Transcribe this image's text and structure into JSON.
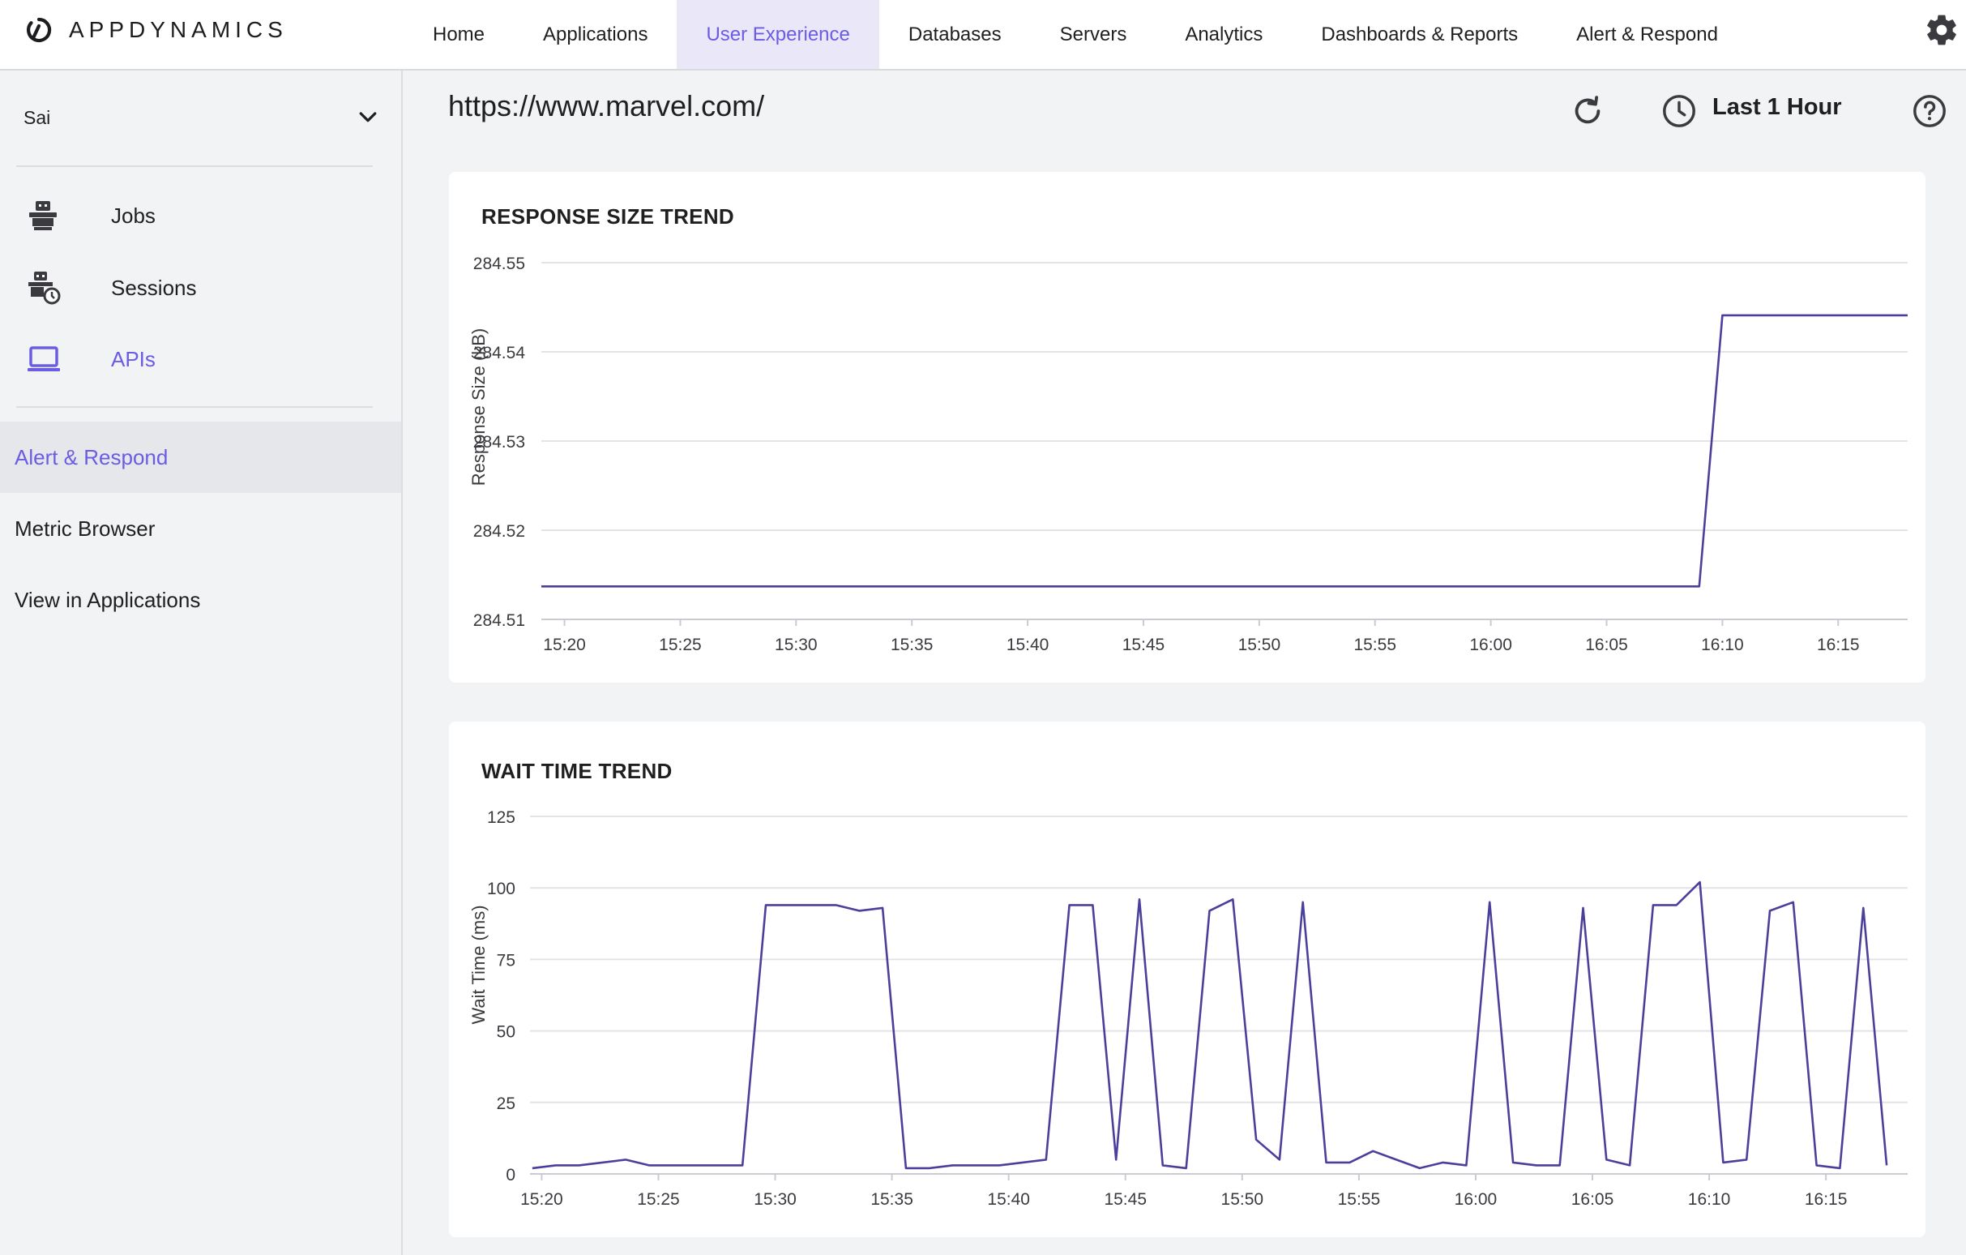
{
  "app": {
    "brand": "APPDYNAMICS"
  },
  "nav": {
    "items": [
      {
        "label": "Home",
        "name": "nav-home",
        "active": false
      },
      {
        "label": "Applications",
        "name": "nav-applications",
        "active": false
      },
      {
        "label": "User Experience",
        "name": "nav-user-experience",
        "active": true
      },
      {
        "label": "Databases",
        "name": "nav-databases",
        "active": false
      },
      {
        "label": "Servers",
        "name": "nav-servers",
        "active": false
      },
      {
        "label": "Analytics",
        "name": "nav-analytics",
        "active": false
      },
      {
        "label": "Dashboards & Reports",
        "name": "nav-dashboards-reports",
        "active": false
      },
      {
        "label": "Alert & Respond",
        "name": "nav-alert-respond",
        "active": false
      }
    ],
    "settings_icon": "gear-icon"
  },
  "sidebar": {
    "account": "Sai",
    "items": [
      {
        "label": "Jobs",
        "icon": "robot-icon",
        "active": false
      },
      {
        "label": "Sessions",
        "icon": "robot-clock-icon",
        "active": false
      },
      {
        "label": "APIs",
        "icon": "laptop-icon",
        "active": true
      }
    ],
    "links": [
      {
        "label": "Alert & Respond",
        "active": true
      },
      {
        "label": "Metric Browser",
        "active": false
      },
      {
        "label": "View in Applications",
        "active": false
      }
    ]
  },
  "header": {
    "url": "https://www.marvel.com/",
    "time_range": "Last 1 Hour",
    "refresh_icon": "refresh-icon",
    "clock_icon": "clock-icon",
    "help_icon": "help-icon"
  },
  "colors": {
    "accent": "#6a5ce3",
    "line": "#4b3f9c",
    "nav_active_bg": "#e9e7f8"
  },
  "chart_data": [
    {
      "type": "line",
      "title": "RESPONSE SIZE TREND",
      "xlabel": "",
      "ylabel": "Response Size (kB)",
      "ylim": [
        284.51,
        284.55
      ],
      "yticks": [
        "284.55",
        "284.54",
        "284.53",
        "284.52",
        "284.51"
      ],
      "ytick_values": [
        284.55,
        284.54,
        284.53,
        284.52,
        284.51
      ],
      "xticks": [
        "15:20",
        "15:25",
        "15:30",
        "15:35",
        "15:40",
        "15:45",
        "15:50",
        "15:55",
        "16:00",
        "16:05",
        "16:10",
        "16:15"
      ],
      "xlim": [
        "15:19",
        "16:18"
      ],
      "grid": true,
      "series": [
        {
          "x": [
            "15:19",
            "16:09",
            "16:10",
            "16:18"
          ],
          "y": [
            284.5137,
            284.5137,
            284.5441,
            284.5441
          ]
        }
      ]
    },
    {
      "type": "line",
      "title": "WAIT TIME TREND",
      "xlabel": "",
      "ylabel": "Wait Time (ms)",
      "ylim": [
        0,
        125
      ],
      "yticks": [
        "125",
        "100",
        "75",
        "50",
        "25",
        "0"
      ],
      "ytick_values": [
        125,
        100,
        75,
        50,
        25,
        0
      ],
      "xticks": [
        "15:20",
        "15:25",
        "15:30",
        "15:35",
        "15:40",
        "15:45",
        "15:50",
        "15:55",
        "16:00",
        "16:05",
        "16:10",
        "16:15"
      ],
      "xlim": [
        "15:19.5",
        "16:18.5"
      ],
      "grid": true,
      "series": [
        {
          "x": [
            "15:19.6",
            "15:20.6",
            "15:21.6",
            "15:23.6",
            "15:24.6",
            "15:25.6",
            "15:28.6",
            "15:29.6",
            "15:31.6",
            "15:32.6",
            "15:33.6",
            "15:34.6",
            "15:35.6",
            "15:36.6",
            "15:37.6",
            "15:38.6",
            "15:39.6",
            "15:40.6",
            "15:41.6",
            "15:42.6",
            "15:43.6",
            "15:44.6",
            "15:45.6",
            "15:46.6",
            "15:47.6",
            "15:48.6",
            "15:49.6",
            "15:50.6",
            "15:51.6",
            "15:52.6",
            "15:53.6",
            "15:54.6",
            "15:55.6",
            "15:56.6",
            "15:57.6",
            "15:58.6",
            "15:59.6",
            "16:00.6",
            "16:01.6",
            "16:02.6",
            "16:03.6",
            "16:04.6",
            "16:05.6",
            "16:06.6",
            "16:07.6",
            "16:08.6",
            "16:09.6",
            "16:10.6",
            "16:11.6",
            "16:12.6",
            "16:13.6",
            "16:14.6",
            "16:15.6",
            "16:16.6",
            "16:17.6"
          ],
          "y": [
            2,
            3,
            3,
            5,
            3,
            3,
            3,
            94,
            94,
            94,
            92,
            93,
            2,
            2,
            3,
            3,
            3,
            4,
            5,
            94,
            94,
            5,
            96,
            3,
            2,
            92,
            96,
            12,
            5,
            95,
            4,
            4,
            8,
            5,
            2,
            4,
            3,
            95,
            4,
            3,
            3,
            93,
            5,
            3,
            94,
            94,
            102,
            4,
            5,
            92,
            95,
            3,
            2,
            93,
            3
          ]
        }
      ]
    }
  ]
}
